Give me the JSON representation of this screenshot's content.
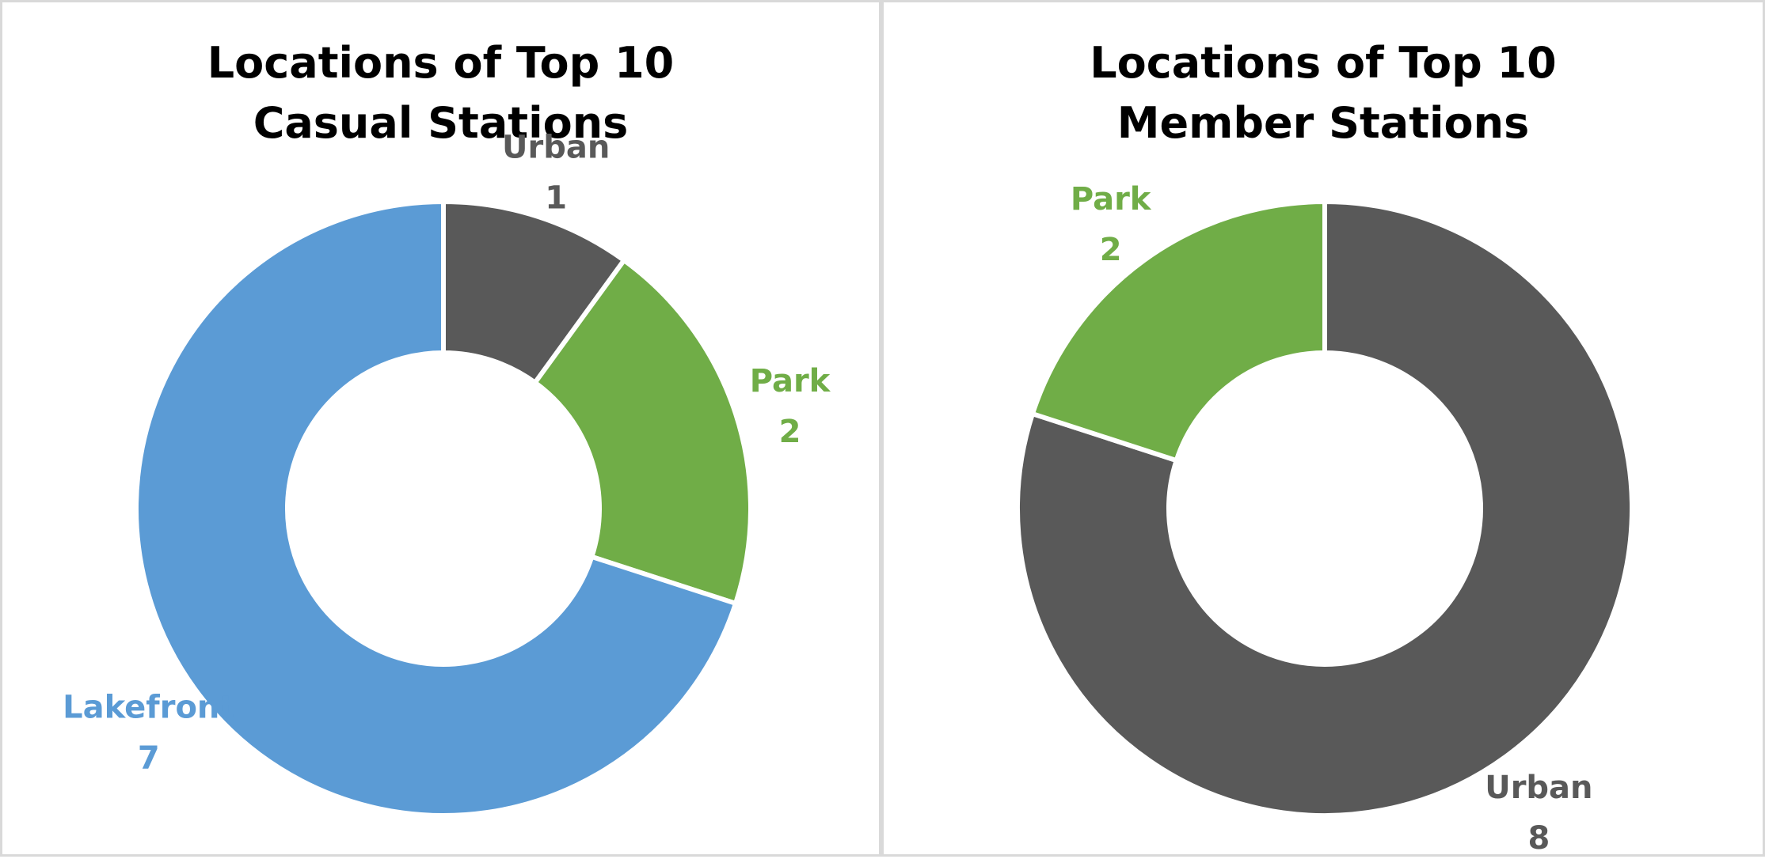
{
  "chart_data": [
    {
      "type": "pie",
      "variant": "doughnut",
      "title_lines": [
        "Locations of Top 10",
        "Casual Stations"
      ],
      "legend": "none",
      "slices": [
        {
          "label": "Urban",
          "value": 1,
          "color": "#595959"
        },
        {
          "label": "Park",
          "value": 2,
          "color": "#70ad47"
        },
        {
          "label": "Lakefront",
          "value": 7,
          "color": "#5b9bd5"
        }
      ]
    },
    {
      "type": "pie",
      "variant": "doughnut",
      "title_lines": [
        "Locations of Top 10",
        "Member Stations"
      ],
      "legend": "none",
      "slices": [
        {
          "label": "Urban",
          "value": 8,
          "color": "#595959"
        },
        {
          "label": "Park",
          "value": 2,
          "color": "#70ad47"
        }
      ]
    }
  ]
}
